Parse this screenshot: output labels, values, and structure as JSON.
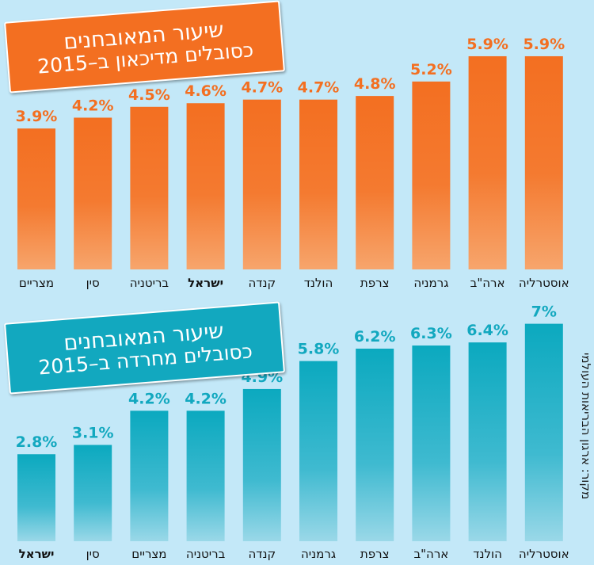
{
  "charts_title": {
    "top_line1": "שיעור המאובחנים",
    "top_line2": "כסובלים מדיכאון ב–2015",
    "bottom_line1": "שיעור המאובחנים",
    "bottom_line2": "כסובלים מחרדה ב–2015"
  },
  "source": "מקור: ארגון הבריאות העולמי",
  "colors": {
    "orange_top": "#f36f21",
    "orange_bottom": "#f7a56c",
    "teal_top": "#0ba9bf",
    "teal_bottom": "#9ad8e8",
    "background": "#c3e8f8"
  },
  "chart_data": [
    {
      "type": "bar",
      "title": "שיעור המאובחנים כסובלים מדיכאון ב–2015",
      "categories": [
        "מצריים",
        "סין",
        "בריטניה",
        "ישראל",
        "קנדה",
        "הולנד",
        "צרפת",
        "גרמניה",
        "ארה\"ב",
        "אוסטרליה"
      ],
      "values": [
        3.9,
        4.2,
        4.5,
        4.6,
        4.7,
        4.7,
        4.8,
        5.2,
        5.9,
        5.9
      ],
      "value_labels": [
        "3.9%",
        "4.2%",
        "4.5%",
        "4.6%",
        "4.7%",
        "4.7%",
        "4.8%",
        "5.2%",
        "5.9%",
        "5.9%"
      ],
      "highlight": "ישראל",
      "unit": "%"
    },
    {
      "type": "bar",
      "title": "שיעור המאובחנים כסובלים מחרדה ב–2015",
      "categories": [
        "ישראל",
        "סין",
        "מצריים",
        "בריטניה",
        "קנדה",
        "גרמניה",
        "צרפת",
        "ארה\"ב",
        "הולנד",
        "אוסטרליה"
      ],
      "values": [
        2.8,
        3.1,
        4.2,
        4.2,
        4.9,
        5.8,
        6.2,
        6.3,
        6.4,
        7
      ],
      "value_labels": [
        "2.8%",
        "3.1%",
        "4.2%",
        "4.2%",
        "4.9%",
        "5.8%",
        "6.2%",
        "6.3%",
        "6.4%",
        "7%"
      ],
      "highlight": "ישראל",
      "unit": "%"
    }
  ]
}
